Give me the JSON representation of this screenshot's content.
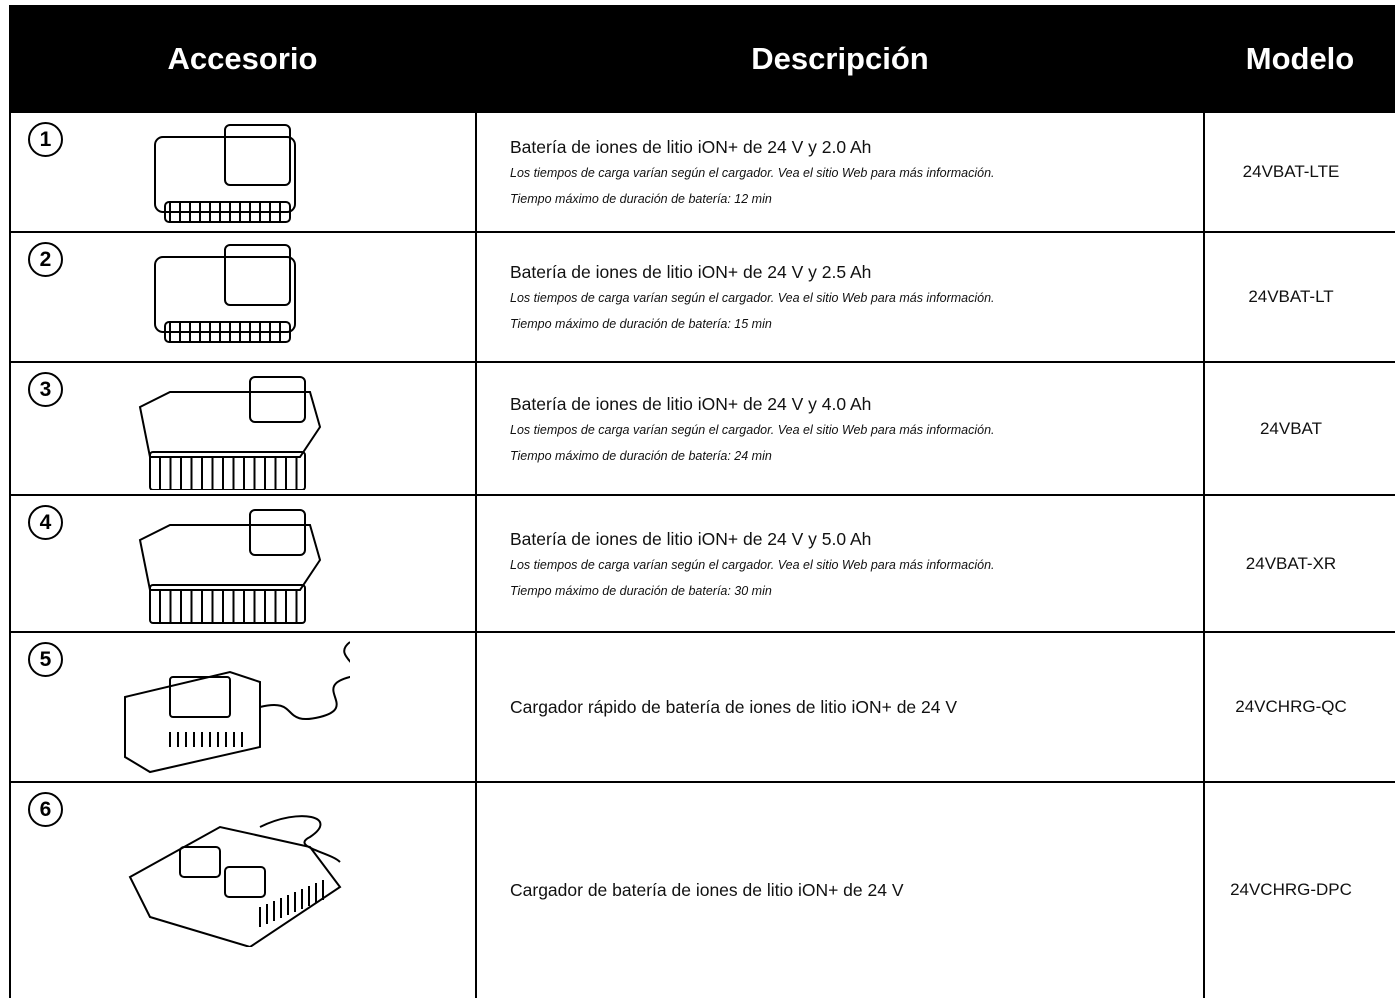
{
  "table": {
    "header": [
      "Accesorio",
      "Descripción",
      "Modelo"
    ],
    "rows": [
      {
        "number": "1",
        "title": "Batería de iones de litio iON+ de 24 V y 2.0 Ah",
        "note": "Los tiempos de carga varían según el cargador. Vea el sitio Web para más información.",
        "runtime": "Tiempo máximo de duración de batería: 12 min",
        "model": "24VBAT-LTE"
      },
      {
        "number": "2",
        "title": "Batería de iones de litio iON+ de 24 V y 2.5 Ah",
        "note": "Los tiempos de carga varían según el cargador. Vea el sitio Web para más información.",
        "runtime": "Tiempo máximo de duración de batería: 15 min",
        "model": "24VBAT-LT"
      },
      {
        "number": "3",
        "title": "Batería de iones de litio iON+ de 24 V y 4.0 Ah",
        "note": "Los tiempos de carga varían según el cargador. Vea el sitio Web para más información.",
        "runtime": "Tiempo máximo de duración de batería: 24 min",
        "model": "24VBAT"
      },
      {
        "number": "4",
        "title": "Batería de iones de litio iON+ de 24 V y 5.0 Ah",
        "note": "Los tiempos de carga varían según el cargador. Vea el sitio Web para más información.",
        "runtime": "Tiempo máximo de duración de batería: 30 min",
        "model": "24VBAT-XR"
      },
      {
        "number": "5",
        "title": "Cargador rápido de batería de iones de litio iON+ de 24 V",
        "model": "24VCHRG-QC"
      },
      {
        "number": "6",
        "title": "Cargador de batería de iones de litio iON+ de 24 V",
        "model": "24VCHRG-DPC"
      }
    ]
  }
}
